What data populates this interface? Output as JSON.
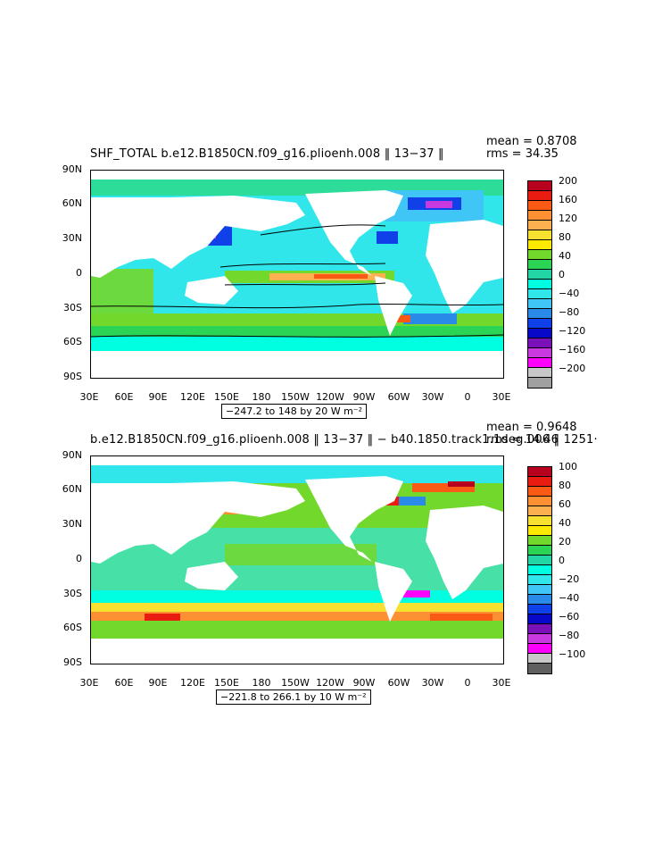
{
  "chart_data": [
    {
      "type": "heatmap",
      "title": "SHF_TOTAL b.e12.B1850CN.f09_g16.plioenh.008 ‖ 13−37 ‖",
      "stats": {
        "mean_label": "mean = 0.8708",
        "rms_label": "rms = 34.35"
      },
      "lat_ticks": [
        "90N",
        "60N",
        "30N",
        "0",
        "30S",
        "60S",
        "90S"
      ],
      "lon_ticks": [
        "30E",
        "60E",
        "90E",
        "120E",
        "150E",
        "180",
        "150W",
        "120W",
        "90W",
        "60W",
        "30W",
        "0",
        "30E"
      ],
      "range_label": "−247.2 to 148 by 20  W m⁻²",
      "colorbar_levels": [
        "200",
        "160",
        "120",
        "80",
        "40",
        "0",
        "−40",
        "−80",
        "−120",
        "−160",
        "−200"
      ],
      "colorbar_colors": [
        "#b8001f",
        "#e81c10",
        "#fa5a14",
        "#fc9032",
        "#fcb050",
        "#f8e030",
        "#fde800",
        "#73d82c",
        "#2bd454",
        "#21d5a5",
        "#00ffe0",
        "#30e6ea",
        "#40c6f6",
        "#2a8ae8",
        "#1040e8",
        "#0808c8",
        "#7a10b8",
        "#c83ae0",
        "#ff00ff",
        "#c8c8c8",
        "#a0a0a0",
        "#606060"
      ]
    },
    {
      "type": "heatmap",
      "title": "b.e12.B1850CN.f09_g16.plioenh.008 ‖ 13−37 ‖ − b40.1850.track1.1deg.006 ‖ 1251·",
      "stats": {
        "mean_label": "mean = 0.9648",
        "rms_label": "rms = 14.46"
      },
      "lat_ticks": [
        "90N",
        "60N",
        "30N",
        "0",
        "30S",
        "60S",
        "90S"
      ],
      "lon_ticks": [
        "30E",
        "60E",
        "90E",
        "120E",
        "150E",
        "180",
        "150W",
        "120W",
        "90W",
        "60W",
        "30W",
        "0",
        "30E"
      ],
      "range_label": "−221.8 to 266.1 by 10  W m⁻²",
      "colorbar_levels": [
        "100",
        "80",
        "60",
        "40",
        "20",
        "0",
        "−20",
        "−40",
        "−60",
        "−80",
        "−100"
      ],
      "colorbar_colors": [
        "#b8001f",
        "#e81c10",
        "#fa5a14",
        "#fc9032",
        "#fcb050",
        "#f8e030",
        "#fde800",
        "#73d82c",
        "#2bd454",
        "#21d5a5",
        "#00ffe0",
        "#30e6ea",
        "#40c6f6",
        "#2a8ae8",
        "#1040e8",
        "#0808c8",
        "#7a10b8",
        "#c83ae0",
        "#ff00ff",
        "#c8c8c8",
        "#a0a0a0",
        "#606060"
      ]
    }
  ]
}
